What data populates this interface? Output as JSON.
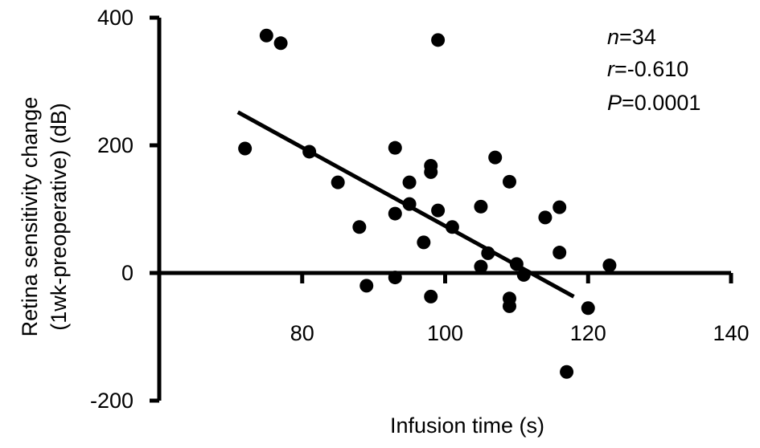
{
  "chart_data": {
    "type": "scatter",
    "xlabel": "Infusion time (s)",
    "ylabel_line1": "Retina sensitivity change",
    "ylabel_line2": "(1wk-preoperative) (dB)",
    "xlim": [
      60,
      140
    ],
    "ylim": [
      -200,
      400
    ],
    "x_ticks": [
      80,
      100,
      120,
      140
    ],
    "y_ticks": [
      -200,
      0,
      200,
      400
    ],
    "grid": false,
    "points": [
      {
        "x": 72,
        "y": 195
      },
      {
        "x": 75,
        "y": 372
      },
      {
        "x": 77,
        "y": 360
      },
      {
        "x": 81,
        "y": 190
      },
      {
        "x": 85,
        "y": 142
      },
      {
        "x": 88,
        "y": 72
      },
      {
        "x": 89,
        "y": -20
      },
      {
        "x": 93,
        "y": 196
      },
      {
        "x": 93,
        "y": 93
      },
      {
        "x": 93,
        "y": -7
      },
      {
        "x": 95,
        "y": 142
      },
      {
        "x": 95,
        "y": 108
      },
      {
        "x": 97,
        "y": 48
      },
      {
        "x": 98,
        "y": 168
      },
      {
        "x": 98,
        "y": 158
      },
      {
        "x": 98,
        "y": -37
      },
      {
        "x": 99,
        "y": 365
      },
      {
        "x": 99,
        "y": 98
      },
      {
        "x": 101,
        "y": 72
      },
      {
        "x": 105,
        "y": 104
      },
      {
        "x": 105,
        "y": 10
      },
      {
        "x": 106,
        "y": 31
      },
      {
        "x": 107,
        "y": 181
      },
      {
        "x": 109,
        "y": 143
      },
      {
        "x": 109,
        "y": -40
      },
      {
        "x": 109,
        "y": -52
      },
      {
        "x": 110,
        "y": 14
      },
      {
        "x": 111,
        "y": -3
      },
      {
        "x": 114,
        "y": 87
      },
      {
        "x": 116,
        "y": 103
      },
      {
        "x": 116,
        "y": 32
      },
      {
        "x": 117,
        "y": -155
      },
      {
        "x": 120,
        "y": -55
      },
      {
        "x": 123,
        "y": 12
      }
    ],
    "trendline": {
      "x1": 71,
      "y1": 252,
      "x2": 118,
      "y2": -37
    },
    "stats": {
      "n_label": "n",
      "n_value": "=34",
      "r_label": "r",
      "r_value": "=-0.610",
      "p_label": "P",
      "p_value": "=0.0001"
    }
  }
}
